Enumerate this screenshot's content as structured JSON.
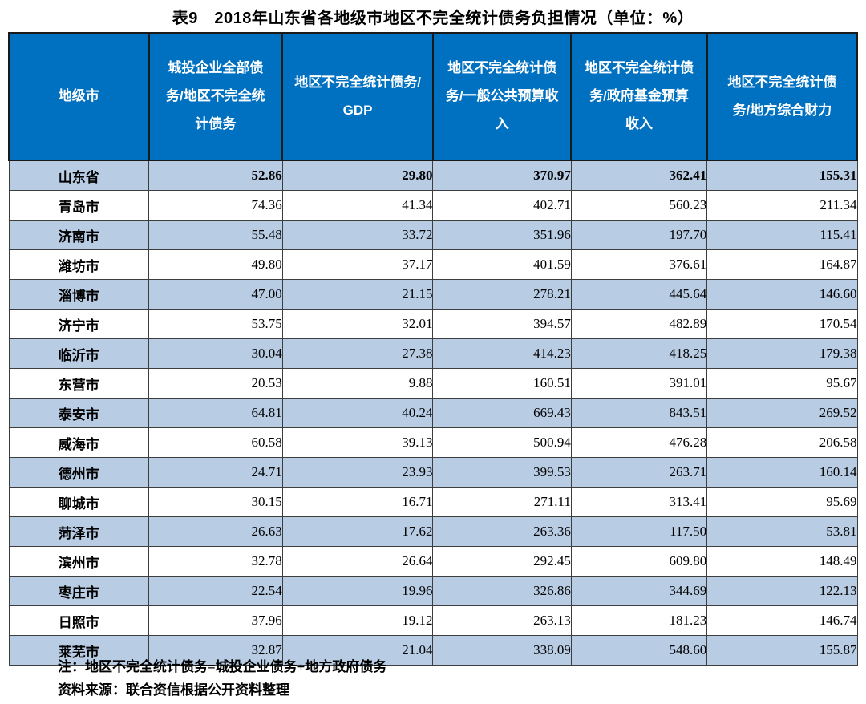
{
  "title": "表9　2018年山东省各地级市地区不完全统计债务负担情况（单位：%）",
  "colors": {
    "header_bg": "#0071c1",
    "stripe_bg": "#b8cce4",
    "border": "#3d3d3d",
    "header_text": "#ffffff"
  },
  "table": {
    "columns": [
      "地级市",
      "城投企业全部债务/地区不完全统计债务",
      "地区不完全统计债务/GDP",
      "地区不完全统计债务/一般公共预算收入",
      "地区不完全统计债务/政府基金预算收入",
      "地区不完全统计债务/地方综合财力"
    ],
    "column_widths_pct": [
      16.5,
      15.75,
      17.75,
      16.3,
      16.0,
      17.7
    ],
    "rows": [
      {
        "city": "山东省",
        "values": [
          "52.86",
          "29.80",
          "370.97",
          "362.41",
          "155.31"
        ],
        "bold": true
      },
      {
        "city": "青岛市",
        "values": [
          "74.36",
          "41.34",
          "402.71",
          "560.23",
          "211.34"
        ],
        "bold": false
      },
      {
        "city": "济南市",
        "values": [
          "55.48",
          "33.72",
          "351.96",
          "197.70",
          "115.41"
        ],
        "bold": false
      },
      {
        "city": "潍坊市",
        "values": [
          "49.80",
          "37.17",
          "401.59",
          "376.61",
          "164.87"
        ],
        "bold": false
      },
      {
        "city": "淄博市",
        "values": [
          "47.00",
          "21.15",
          "278.21",
          "445.64",
          "146.60"
        ],
        "bold": false
      },
      {
        "city": "济宁市",
        "values": [
          "53.75",
          "32.01",
          "394.57",
          "482.89",
          "170.54"
        ],
        "bold": false
      },
      {
        "city": "临沂市",
        "values": [
          "30.04",
          "27.38",
          "414.23",
          "418.25",
          "179.38"
        ],
        "bold": false
      },
      {
        "city": "东营市",
        "values": [
          "20.53",
          "9.88",
          "160.51",
          "391.01",
          "95.67"
        ],
        "bold": false
      },
      {
        "city": "泰安市",
        "values": [
          "64.81",
          "40.24",
          "669.43",
          "843.51",
          "269.52"
        ],
        "bold": false
      },
      {
        "city": "威海市",
        "values": [
          "60.58",
          "39.13",
          "500.94",
          "476.28",
          "206.58"
        ],
        "bold": false
      },
      {
        "city": "德州市",
        "values": [
          "24.71",
          "23.93",
          "399.53",
          "263.71",
          "160.14"
        ],
        "bold": false
      },
      {
        "city": "聊城市",
        "values": [
          "30.15",
          "16.71",
          "271.11",
          "313.41",
          "95.69"
        ],
        "bold": false
      },
      {
        "city": "菏泽市",
        "values": [
          "26.63",
          "17.62",
          "263.36",
          "117.50",
          "53.81"
        ],
        "bold": false
      },
      {
        "city": "滨州市",
        "values": [
          "32.78",
          "26.64",
          "292.45",
          "609.80",
          "148.49"
        ],
        "bold": false
      },
      {
        "city": "枣庄市",
        "values": [
          "22.54",
          "19.96",
          "326.86",
          "344.69",
          "122.13"
        ],
        "bold": false
      },
      {
        "city": "日照市",
        "values": [
          "37.96",
          "19.12",
          "263.13",
          "181.23",
          "146.74"
        ],
        "bold": false
      },
      {
        "city": "莱芜市",
        "values": [
          "32.87",
          "21.04",
          "338.09",
          "548.60",
          "155.87"
        ],
        "bold": false
      }
    ]
  },
  "notes": [
    "注：地区不完全统计债务=城投企业债务+地方政府债务",
    "资料来源：联合资信根据公开资料整理"
  ]
}
